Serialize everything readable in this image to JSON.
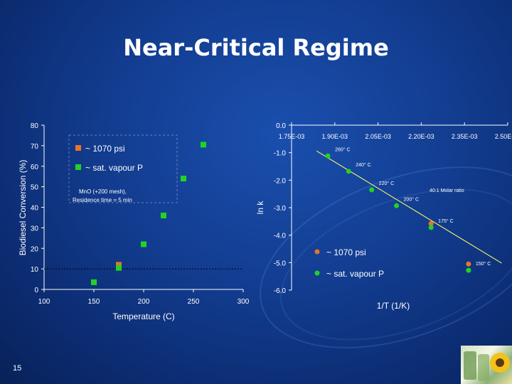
{
  "slide": {
    "title": "Near-Critical Regime",
    "slide_number": "15"
  },
  "colors": {
    "background": "#123c8f",
    "series_1070": "#e8742a",
    "series_sat": "#22d322",
    "axis": "#ffffff",
    "fit_line": "#ffff66"
  },
  "chart_data": [
    {
      "type": "scatter",
      "xlabel": "Temperature (C)",
      "ylabel": "Biodiesel Conversion (%)",
      "xlim": [
        100,
        300
      ],
      "ylim": [
        0,
        80
      ],
      "xticks": [
        "100",
        "150",
        "200",
        "250",
        "300"
      ],
      "yticks": [
        "0",
        "10",
        "20",
        "30",
        "40",
        "50",
        "60",
        "70",
        "80"
      ],
      "reference_line_y": 10,
      "legend": {
        "position": "top-left",
        "entries": [
          "~ 1070 psi",
          "~ sat. vapour P"
        ]
      },
      "annotation": [
        "MnO (+200 mesh),",
        "Residence time = 5 min"
      ],
      "series": [
        {
          "name": "~ 1070 psi",
          "marker": "square",
          "color": "#e8742a",
          "points": [
            {
              "x": 175,
              "y": 12
            }
          ]
        },
        {
          "name": "~ sat. vapour P",
          "marker": "square",
          "color": "#22d322",
          "points": [
            {
              "x": 150,
              "y": 3.5
            },
            {
              "x": 175,
              "y": 10.5
            },
            {
              "x": 200,
              "y": 22
            },
            {
              "x": 220,
              "y": 36
            },
            {
              "x": 240,
              "y": 54
            },
            {
              "x": 260,
              "y": 70.5
            }
          ]
        }
      ]
    },
    {
      "type": "scatter",
      "xlabel": "1/T (1/K)",
      "ylabel": "ln k",
      "xlim": [
        0.00175,
        0.0025
      ],
      "ylim": [
        -6,
        0
      ],
      "xticks": [
        "1.75E-03",
        "1.90E-03",
        "2.05E-03",
        "2.20E-03",
        "2.35E-03",
        "2.50E-03"
      ],
      "yticks": [
        "0.0",
        "-1.0",
        "-2.0",
        "-3.0",
        "-4.0",
        "-5.0",
        "-6.0"
      ],
      "legend": {
        "position": "bottom-center",
        "entries": [
          "~ 1070 psi",
          "~ sat. vapour P"
        ]
      },
      "note": "40:1 Molar ratio",
      "fit_line": {
        "x": [
          0.001837,
          0.002479
        ],
        "y": [
          -0.94,
          -5.02
        ]
      },
      "series": [
        {
          "name": "~ 1070 psi",
          "marker": "circle",
          "color": "#e8742a",
          "points": [
            {
              "x": 0.002234,
              "y": -3.58
            },
            {
              "x": 0.002364,
              "y": -5.05
            }
          ]
        },
        {
          "name": "~ sat. vapour P",
          "marker": "circle",
          "color": "#22d322",
          "points": [
            {
              "x": 0.001876,
              "y": -1.12
            },
            {
              "x": 0.001948,
              "y": -1.68
            },
            {
              "x": 0.002028,
              "y": -2.35
            },
            {
              "x": 0.002114,
              "y": -2.93
            },
            {
              "x": 0.002234,
              "y": -3.72
            },
            {
              "x": 0.002364,
              "y": -5.28
            }
          ]
        }
      ],
      "point_labels": [
        {
          "text": "260° C",
          "x": 0.001876,
          "y": -1.12
        },
        {
          "text": "240° C",
          "x": 0.001948,
          "y": -1.68
        },
        {
          "text": "220° C",
          "x": 0.002028,
          "y": -2.35
        },
        {
          "text": "200° C",
          "x": 0.002114,
          "y": -2.93
        },
        {
          "text": "175° C",
          "x": 0.002234,
          "y": -3.72
        },
        {
          "text": "150° C",
          "x": 0.002364,
          "y": -5.28
        }
      ]
    }
  ]
}
